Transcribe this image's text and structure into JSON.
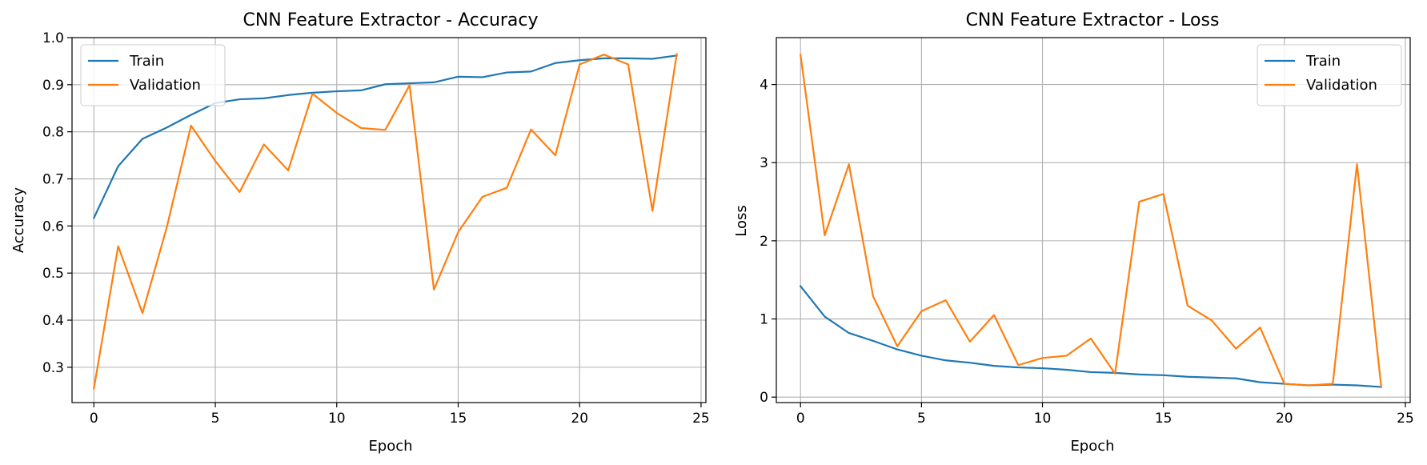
{
  "chart_data": [
    {
      "type": "line",
      "title": "CNN Feature Extractor - Accuracy",
      "xlabel": "Epoch",
      "ylabel": "Accuracy",
      "xlim": [
        -0.9,
        25.2
      ],
      "ylim": [
        0.225,
        1.0
      ],
      "xticks": [
        0,
        5,
        10,
        15,
        20,
        25
      ],
      "yticks": [
        0.3,
        0.4,
        0.5,
        0.6,
        0.7,
        0.8,
        0.9,
        1.0
      ],
      "ytick_decimals": 1,
      "grid": true,
      "legend_position": "top-left",
      "x": [
        0,
        1,
        2,
        3,
        4,
        5,
        6,
        7,
        8,
        9,
        10,
        11,
        12,
        13,
        14,
        15,
        16,
        17,
        18,
        19,
        20,
        21,
        22,
        23,
        24
      ],
      "series": [
        {
          "name": "Train",
          "color": "#1f77b4",
          "values": [
            0.617,
            0.727,
            0.785,
            0.809,
            0.836,
            0.861,
            0.869,
            0.871,
            0.878,
            0.883,
            0.886,
            0.888,
            0.901,
            0.903,
            0.905,
            0.917,
            0.916,
            0.926,
            0.928,
            0.946,
            0.952,
            0.956,
            0.956,
            0.955,
            0.962
          ]
        },
        {
          "name": "Validation",
          "color": "#ff7f0e",
          "values": [
            0.255,
            0.557,
            0.415,
            0.597,
            0.813,
            0.738,
            0.672,
            0.773,
            0.718,
            0.881,
            0.84,
            0.808,
            0.804,
            0.899,
            0.465,
            0.587,
            0.662,
            0.681,
            0.805,
            0.75,
            0.943,
            0.964,
            0.943,
            0.632,
            0.965
          ]
        }
      ]
    },
    {
      "type": "line",
      "title": "CNN Feature Extractor - Loss",
      "xlabel": "Epoch",
      "ylabel": "Loss",
      "xlim": [
        -1.0,
        25.2
      ],
      "ylim": [
        -0.07,
        4.6
      ],
      "xticks": [
        0,
        5,
        10,
        15,
        20,
        25
      ],
      "yticks": [
        0,
        1,
        2,
        3,
        4
      ],
      "ytick_decimals": 0,
      "grid": true,
      "legend_position": "top-right",
      "x": [
        0,
        1,
        2,
        3,
        4,
        5,
        6,
        7,
        8,
        9,
        10,
        11,
        12,
        13,
        14,
        15,
        16,
        17,
        18,
        19,
        20,
        21,
        22,
        23,
        24
      ],
      "series": [
        {
          "name": "Train",
          "color": "#1f77b4",
          "values": [
            1.42,
            1.03,
            0.82,
            0.72,
            0.61,
            0.53,
            0.47,
            0.44,
            0.4,
            0.38,
            0.37,
            0.35,
            0.32,
            0.31,
            0.29,
            0.28,
            0.26,
            0.25,
            0.24,
            0.19,
            0.17,
            0.15,
            0.16,
            0.15,
            0.13
          ]
        },
        {
          "name": "Validation",
          "color": "#ff7f0e",
          "values": [
            4.38,
            2.07,
            2.98,
            1.29,
            0.65,
            1.1,
            1.24,
            0.71,
            1.05,
            0.41,
            0.5,
            0.53,
            0.75,
            0.3,
            2.5,
            2.6,
            1.17,
            0.98,
            0.62,
            0.89,
            0.17,
            0.15,
            0.17,
            2.98,
            0.14
          ]
        }
      ]
    }
  ]
}
